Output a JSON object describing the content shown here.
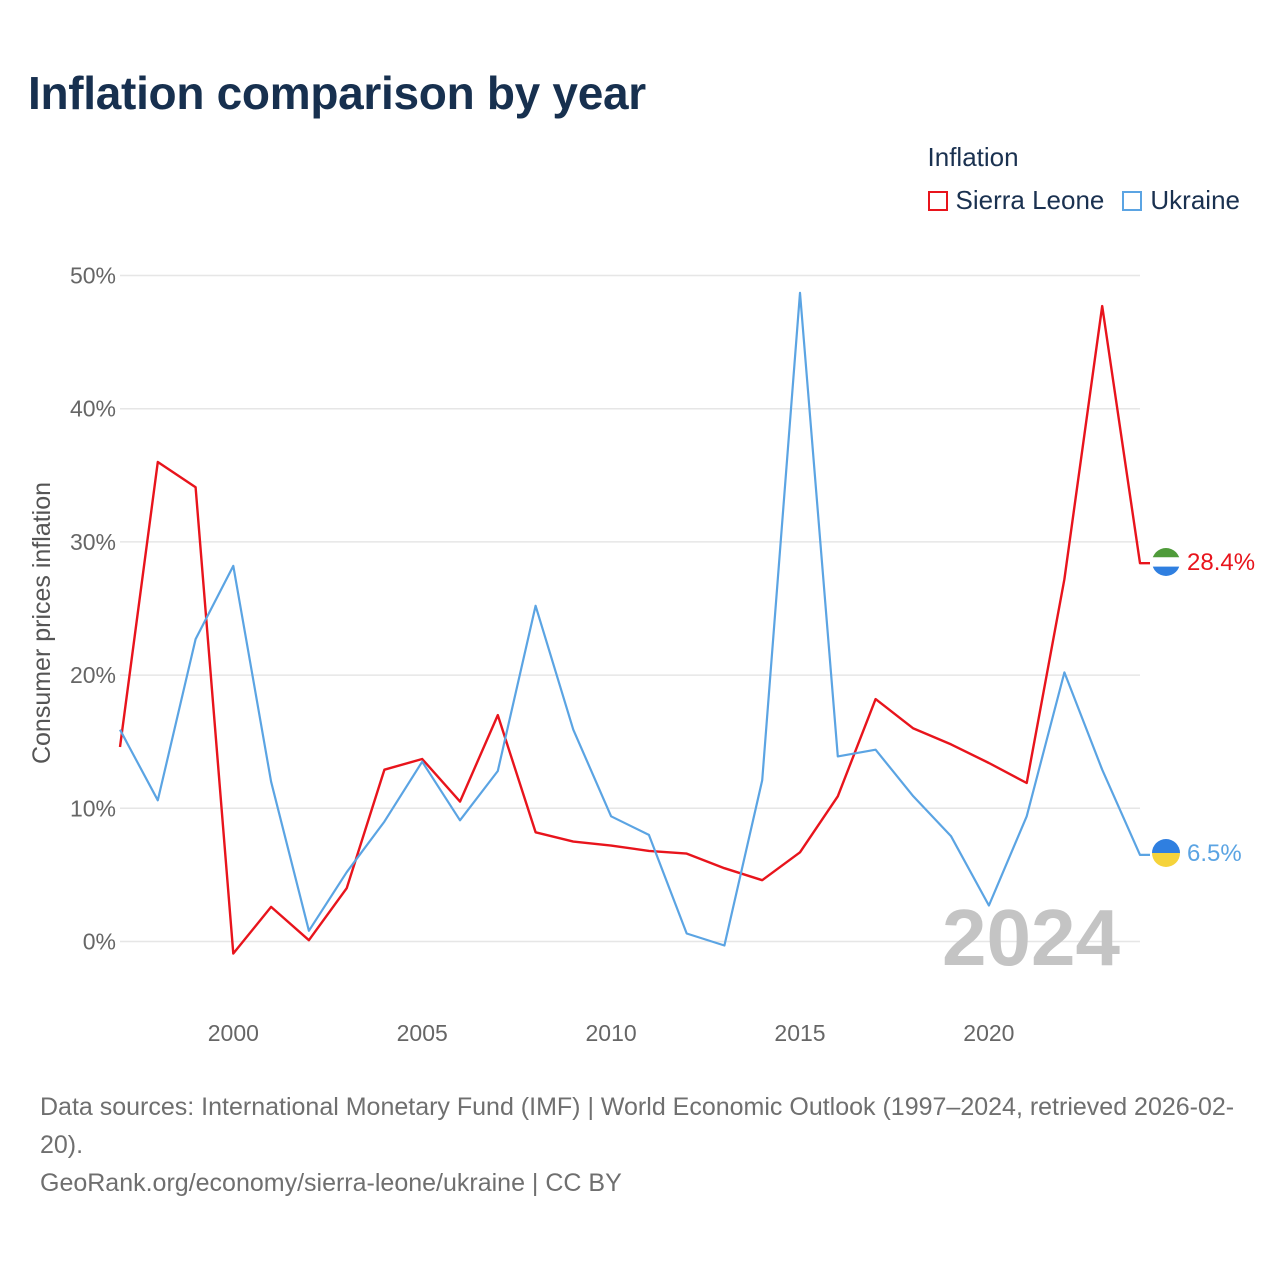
{
  "title": "Inflation comparison by year",
  "legend": {
    "title": "Inflation",
    "items": [
      {
        "label": "Sierra Leone",
        "color": "#e8141c"
      },
      {
        "label": "Ukraine",
        "color": "#5ba4e3"
      }
    ]
  },
  "footer": {
    "sources": "Data sources: International Monetary Fund (IMF) | World Economic Outlook (1997–2024, retrieved 2026-02-20).",
    "url": "GeoRank.org/economy/sierra-leone/ukraine | CC BY"
  },
  "chart_data": {
    "type": "line",
    "title": "Inflation comparison by year",
    "xlabel": "",
    "ylabel": "Consumer prices inflation",
    "xlim": [
      1997,
      2024
    ],
    "ylim": [
      -5,
      52
    ],
    "year_label": "2024",
    "x_ticks": [
      2000,
      2005,
      2010,
      2015,
      2020
    ],
    "y_ticks": [
      {
        "value": 0,
        "label": "0%"
      },
      {
        "value": 10,
        "label": "10%"
      },
      {
        "value": 20,
        "label": "20%"
      },
      {
        "value": 30,
        "label": "30%"
      },
      {
        "value": 40,
        "label": "40%"
      },
      {
        "value": 50,
        "label": "50%"
      }
    ],
    "x": [
      1997,
      1998,
      1999,
      2000,
      2001,
      2002,
      2003,
      2004,
      2005,
      2006,
      2007,
      2008,
      2009,
      2010,
      2011,
      2012,
      2013,
      2014,
      2015,
      2016,
      2017,
      2018,
      2019,
      2020,
      2021,
      2022,
      2023,
      2024
    ],
    "series": [
      {
        "name": "Sierra Leone",
        "color": "#e8141c",
        "end_label": "28.4%",
        "values": [
          14.6,
          36.0,
          34.1,
          -0.9,
          2.6,
          0.1,
          4.0,
          12.9,
          13.7,
          10.5,
          17.0,
          8.2,
          7.5,
          7.2,
          6.8,
          6.6,
          5.5,
          4.6,
          6.7,
          10.9,
          18.2,
          16.0,
          14.8,
          13.4,
          11.9,
          27.2,
          47.7,
          28.4
        ]
      },
      {
        "name": "Ukraine",
        "color": "#5ba4e3",
        "end_label": "6.5%",
        "values": [
          15.9,
          10.6,
          22.7,
          28.2,
          12.0,
          0.8,
          5.2,
          9.0,
          13.5,
          9.1,
          12.8,
          25.2,
          15.9,
          9.4,
          8.0,
          0.6,
          -0.3,
          12.1,
          48.7,
          13.9,
          14.4,
          10.9,
          7.9,
          2.7,
          9.4,
          20.2,
          12.9,
          6.5
        ]
      }
    ]
  }
}
